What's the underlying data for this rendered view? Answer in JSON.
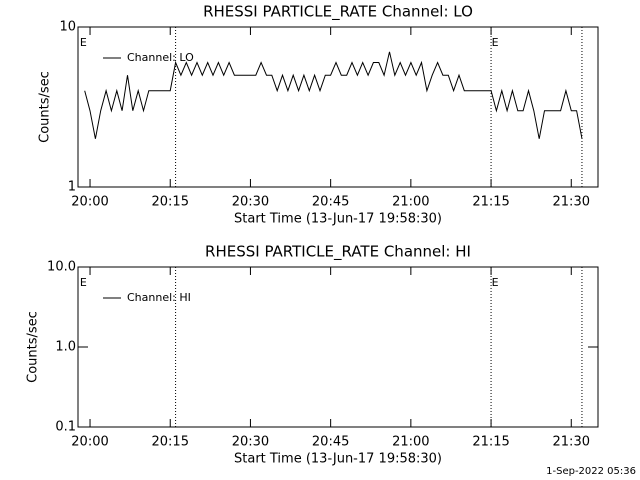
{
  "chart_data": [
    {
      "type": "line",
      "title": "RHESSI PARTICLE_RATE Channel: LO",
      "xlabel": "Start Time (13-Jun-17 19:58:30)",
      "ylabel": "Counts/sec",
      "log_y": true,
      "ylim": [
        1,
        10
      ],
      "yticks": [
        1,
        10
      ],
      "xlim": [
        "19:57:45",
        "21:35"
      ],
      "xticks": [
        "20:00",
        "20:15",
        "20:30",
        "20:45",
        "21:00",
        "21:15",
        "21:30"
      ],
      "vlines": [
        "20:16",
        "21:15",
        "21:32"
      ],
      "annotations": [
        {
          "text": "E",
          "x": "19:58"
        },
        {
          "text": "E",
          "x": "21:15"
        }
      ],
      "legend": "upper left",
      "x": [
        "19:59",
        "20:00",
        "20:01",
        "20:02",
        "20:03",
        "20:04",
        "20:05",
        "20:06",
        "20:07",
        "20:08",
        "20:09",
        "20:10",
        "20:11",
        "20:12",
        "20:13",
        "20:14",
        "20:15",
        "20:16",
        "20:17",
        "20:18",
        "20:19",
        "20:20",
        "20:21",
        "20:22",
        "20:23",
        "20:24",
        "20:25",
        "20:26",
        "20:27",
        "20:28",
        "20:29",
        "20:30",
        "20:31",
        "20:32",
        "20:33",
        "20:34",
        "20:35",
        "20:36",
        "20:37",
        "20:38",
        "20:39",
        "20:40",
        "20:41",
        "20:42",
        "20:43",
        "20:44",
        "20:45",
        "20:46",
        "20:47",
        "20:48",
        "20:49",
        "20:50",
        "20:51",
        "20:52",
        "20:53",
        "20:54",
        "20:55",
        "20:56",
        "20:57",
        "20:58",
        "20:59",
        "21:00",
        "21:01",
        "21:02",
        "21:03",
        "21:04",
        "21:05",
        "21:06",
        "21:07",
        "21:08",
        "21:09",
        "21:10",
        "21:11",
        "21:12",
        "21:13",
        "21:14",
        "21:15",
        "21:16",
        "21:17",
        "21:18",
        "21:19",
        "21:20",
        "21:21",
        "21:22",
        "21:23",
        "21:24",
        "21:25",
        "21:26",
        "21:27",
        "21:28",
        "21:29",
        "21:30",
        "21:31",
        "21:32"
      ],
      "series": [
        {
          "name": "Channel: LO",
          "color": "#000000",
          "values": [
            4,
            3,
            2,
            3,
            4,
            3,
            4,
            3,
            5,
            3,
            4,
            3,
            4,
            4,
            4,
            4,
            4,
            6,
            5,
            6,
            5,
            6,
            5,
            6,
            5,
            6,
            5,
            6,
            5,
            5,
            5,
            5,
            5,
            6,
            5,
            5,
            4,
            5,
            4,
            5,
            4,
            5,
            4,
            5,
            4,
            5,
            5,
            6,
            5,
            5,
            6,
            5,
            6,
            5,
            6,
            6,
            5,
            7,
            5,
            6,
            5,
            6,
            5,
            6,
            4,
            5,
            6,
            5,
            5,
            4,
            5,
            4,
            4,
            4,
            4,
            4,
            4,
            3,
            4,
            3,
            4,
            3,
            3,
            4,
            3,
            2,
            3,
            3,
            3,
            3,
            4,
            3,
            3,
            2
          ]
        }
      ]
    },
    {
      "type": "line",
      "title": "RHESSI PARTICLE_RATE Channel: HI",
      "xlabel": "Start Time (13-Jun-17 19:58:30)",
      "ylabel": "Counts/sec",
      "log_y": true,
      "ylim": [
        0.1,
        10
      ],
      "yticks": [
        0.1,
        {
          "value": 1,
          "label": "1.0"
        },
        {
          "value": 10,
          "label": "10.0"
        }
      ],
      "xlim": [
        "19:57:45",
        "21:35"
      ],
      "xticks": [
        "20:00",
        "20:15",
        "20:30",
        "20:45",
        "21:00",
        "21:15",
        "21:30"
      ],
      "vlines": [
        "20:16",
        "21:15",
        "21:32"
      ],
      "annotations": [
        {
          "text": "E",
          "x": "19:58"
        },
        {
          "text": "E",
          "x": "21:15"
        }
      ],
      "legend": "upper left",
      "x": [],
      "series": [
        {
          "name": "Channel: HI",
          "color": "#000000",
          "values": []
        }
      ]
    }
  ],
  "footer": "1-Sep-2022 05:36"
}
